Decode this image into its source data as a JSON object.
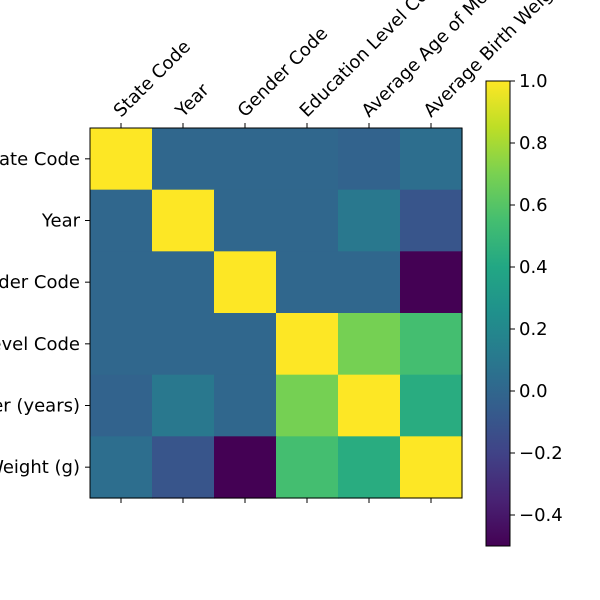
{
  "chart_data": {
    "type": "heatmap",
    "x_labels": [
      "State Code",
      "Year",
      "Gender Code",
      "Education Level Code",
      "Average Age of Mother (years)",
      "Average Birth Weight (g)"
    ],
    "y_labels": [
      "State Code",
      "Year",
      "Gender Code",
      "Education Level Code",
      "Average Age of Mother (years)",
      "Average Birth Weight (g)"
    ],
    "values": [
      [
        1.0,
        0.0,
        0.0,
        0.0,
        -0.02,
        0.04
      ],
      [
        0.0,
        1.0,
        0.0,
        0.0,
        0.1,
        -0.1
      ],
      [
        0.0,
        0.0,
        1.0,
        0.0,
        0.0,
        -0.5
      ],
      [
        0.0,
        0.0,
        0.0,
        1.0,
        0.69,
        0.55
      ],
      [
        -0.02,
        0.1,
        0.0,
        0.69,
        1.0,
        0.43
      ],
      [
        0.04,
        -0.1,
        -0.5,
        0.55,
        0.43,
        1.0
      ]
    ],
    "colorbar": {
      "min": -0.5,
      "max": 1.0,
      "ticks": [
        -0.4,
        -0.2,
        0.0,
        0.2,
        0.4,
        0.6,
        0.8,
        1.0
      ],
      "tick_labels": [
        "−0.4",
        "−0.2",
        "0.0",
        "0.2",
        "0.4",
        "0.6",
        "0.8",
        "1.0"
      ],
      "colormap": "viridis"
    },
    "title": "",
    "xlabel": "",
    "ylabel": ""
  }
}
